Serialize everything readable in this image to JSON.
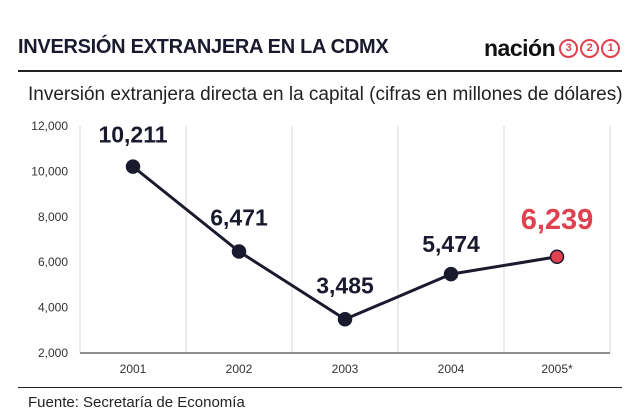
{
  "header": {
    "title": "INVERSIÓN EXTRANJERA EN LA CDMX",
    "logo_word": "nación",
    "logo_digits": [
      "3",
      "2",
      "1"
    ]
  },
  "subtitle": "Inversión extranjera directa en la capital (cifras en millones de dólares)",
  "source": "Fuente:  Secretaría de Economía",
  "colors": {
    "line": "#1a1a2e",
    "highlight": "#e0414e",
    "highlight_fill": "#e0414e"
  },
  "chart_data": {
    "type": "line",
    "title": "",
    "xlabel": "",
    "ylabel": "",
    "categories": [
      "2001",
      "2002",
      "2003",
      "2004",
      "2005*"
    ],
    "series": [
      {
        "values": [
          10211,
          6471,
          3485,
          5474,
          6239
        ]
      }
    ],
    "data_labels": [
      "10,211",
      "6,471",
      "3,485",
      "5,474",
      "6,239"
    ],
    "highlight_index": 4,
    "ylim": [
      2000,
      12000
    ],
    "yticks": [
      2000,
      4000,
      6000,
      8000,
      10000,
      12000
    ],
    "ytick_labels": [
      "2,000",
      "4,000",
      "6,000",
      "8,000",
      "10,000",
      "12,000"
    ],
    "grid": {
      "x": true,
      "y": false
    }
  }
}
